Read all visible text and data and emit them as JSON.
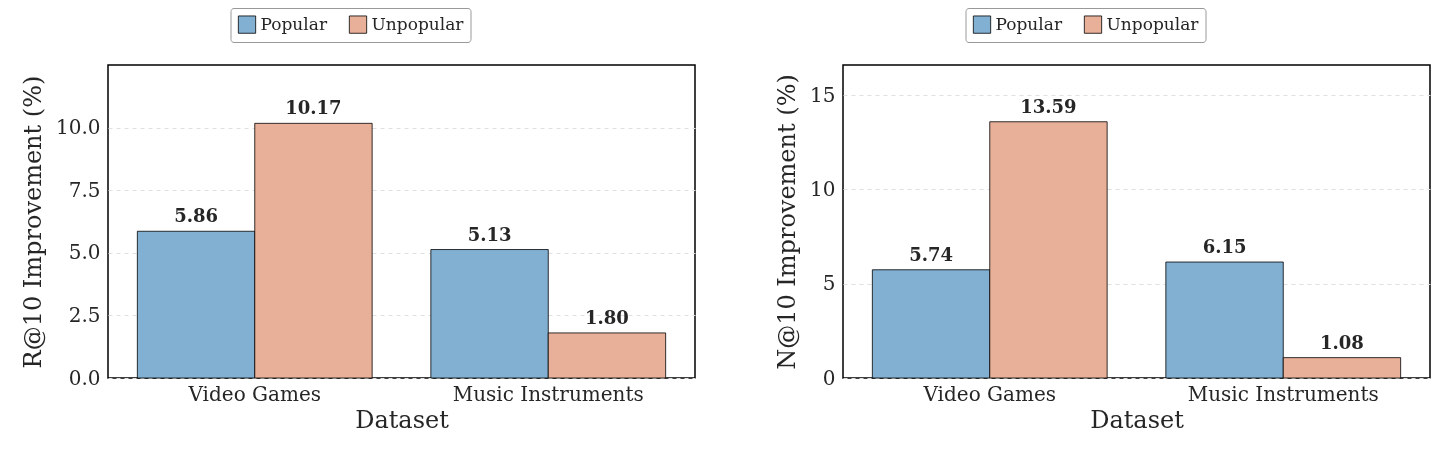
{
  "chart_data": [
    {
      "type": "bar",
      "xlabel": "Dataset",
      "ylabel": "R@10 Improvement (%)",
      "categories": [
        "Video Games",
        "Music Instruments"
      ],
      "series": [
        {
          "name": "Popular",
          "color": "#82b0d2",
          "values": [
            5.86,
            5.13
          ],
          "value_labels": [
            "5.86",
            "5.13"
          ]
        },
        {
          "name": "Unpopular",
          "color": "#e8b098",
          "values": [
            10.17,
            1.8
          ],
          "value_labels": [
            "10.17",
            "1.80"
          ]
        }
      ],
      "ylim": [
        0,
        12.5
      ],
      "yticks": [
        {
          "value": 0,
          "label": "0.0"
        },
        {
          "value": 2.5,
          "label": "2.5"
        },
        {
          "value": 5,
          "label": "5.0"
        },
        {
          "value": 7.5,
          "label": "7.5"
        },
        {
          "value": 10,
          "label": "10.0"
        }
      ],
      "grid": "y",
      "legend": "top"
    },
    {
      "type": "bar",
      "xlabel": "Dataset",
      "ylabel": "N@10 Improvement (%)",
      "categories": [
        "Video Games",
        "Music Instruments"
      ],
      "series": [
        {
          "name": "Popular",
          "color": "#82b0d2",
          "values": [
            5.74,
            6.15
          ]
        },
        {
          "name": "Unpopular",
          "color": "#e8b098",
          "values": [
            13.59,
            1.08
          ]
        }
      ],
      "ylim": [
        0,
        16.6
      ],
      "yticks": [
        0,
        5,
        10,
        15
      ],
      "grid": "y",
      "legend": "top",
      "data_labels": true
    }
  ]
}
